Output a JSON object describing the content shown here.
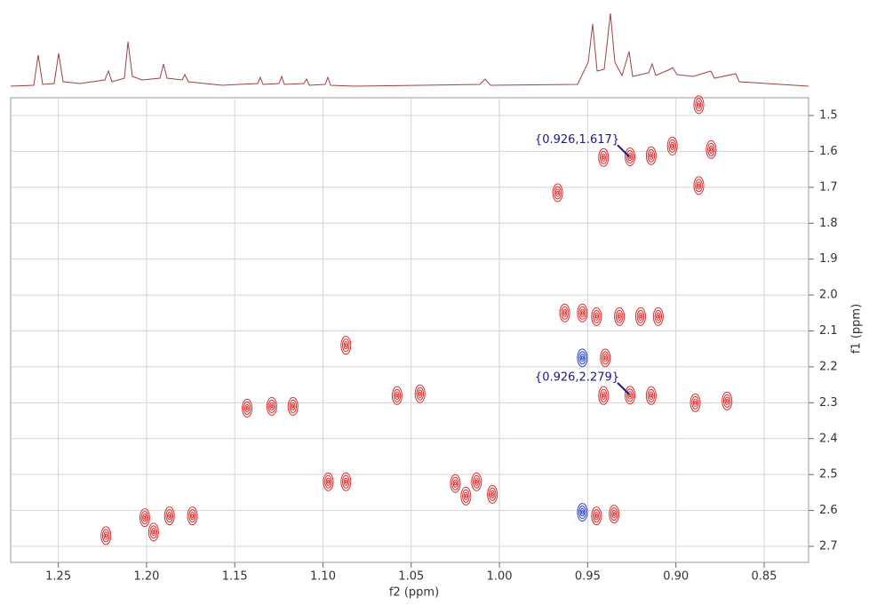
{
  "chart_data": {
    "type": "contour",
    "x_label": "f2 (ppm)",
    "y_label": "f1 (ppm)",
    "xlim": [
      0.8248,
      1.277
    ],
    "x_inverted": true,
    "ylim": [
      1.4505,
      2.7445
    ],
    "y_inverted": true,
    "grid": true,
    "xticks": [
      {
        "value": 1.25,
        "label": "1.25"
      },
      {
        "value": 1.2,
        "label": "1.20"
      },
      {
        "value": 1.15,
        "label": "1.15"
      },
      {
        "value": 1.1,
        "label": "1.10"
      },
      {
        "value": 1.05,
        "label": "1.05"
      },
      {
        "value": 1,
        "label": "1.00"
      },
      {
        "value": 0.95,
        "label": "0.95"
      },
      {
        "value": 0.9,
        "label": "0.90"
      },
      {
        "value": 0.85,
        "label": "0.85"
      }
    ],
    "yticks": [
      1.5,
      1.6,
      1.7,
      1.8,
      1.9,
      {
        "value": 2,
        "label": "2.0"
      },
      2.1,
      2.2,
      2.3,
      2.4,
      2.5,
      2.6,
      2.7
    ],
    "series": [
      {
        "color": "#e02a2a",
        "x": [
          0.941,
          0.926,
          0.914,
          0.902,
          0.88,
          0.887,
          0.887,
          0.967,
          0.963,
          0.953,
          0.945,
          0.932,
          0.92,
          0.91,
          0.94,
          0.941,
          0.926,
          0.914,
          0.889,
          0.871,
          1.087,
          1.143,
          1.129,
          1.117,
          1.058,
          1.045,
          1.097,
          1.087,
          1.025,
          1.013,
          1.019,
          1.004,
          0.945,
          0.935,
          1.201,
          1.196,
          1.187,
          1.174,
          1.223
        ],
        "values": [
          1.617,
          1.615,
          1.612,
          1.585,
          1.595,
          1.47,
          1.695,
          1.715,
          2.05,
          2.05,
          2.06,
          2.06,
          2.06,
          2.06,
          2.175,
          2.28,
          2.279,
          2.28,
          2.3,
          2.295,
          2.14,
          2.315,
          2.31,
          2.31,
          2.28,
          2.275,
          2.52,
          2.52,
          2.525,
          2.52,
          2.56,
          2.555,
          2.615,
          2.61,
          2.62,
          2.66,
          2.615,
          2.615,
          2.67
        ]
      },
      {
        "color": "#2a3fd0",
        "x": [
          0.953,
          0.953
        ],
        "values": [
          2.175,
          2.605
        ]
      }
    ],
    "annotations": [
      {
        "text": "{0.926,1.617}",
        "x": 0.926,
        "y": 1.617
      },
      {
        "text": "{0.926,2.279}",
        "x": 0.926,
        "y": 2.279
      }
    ]
  }
}
